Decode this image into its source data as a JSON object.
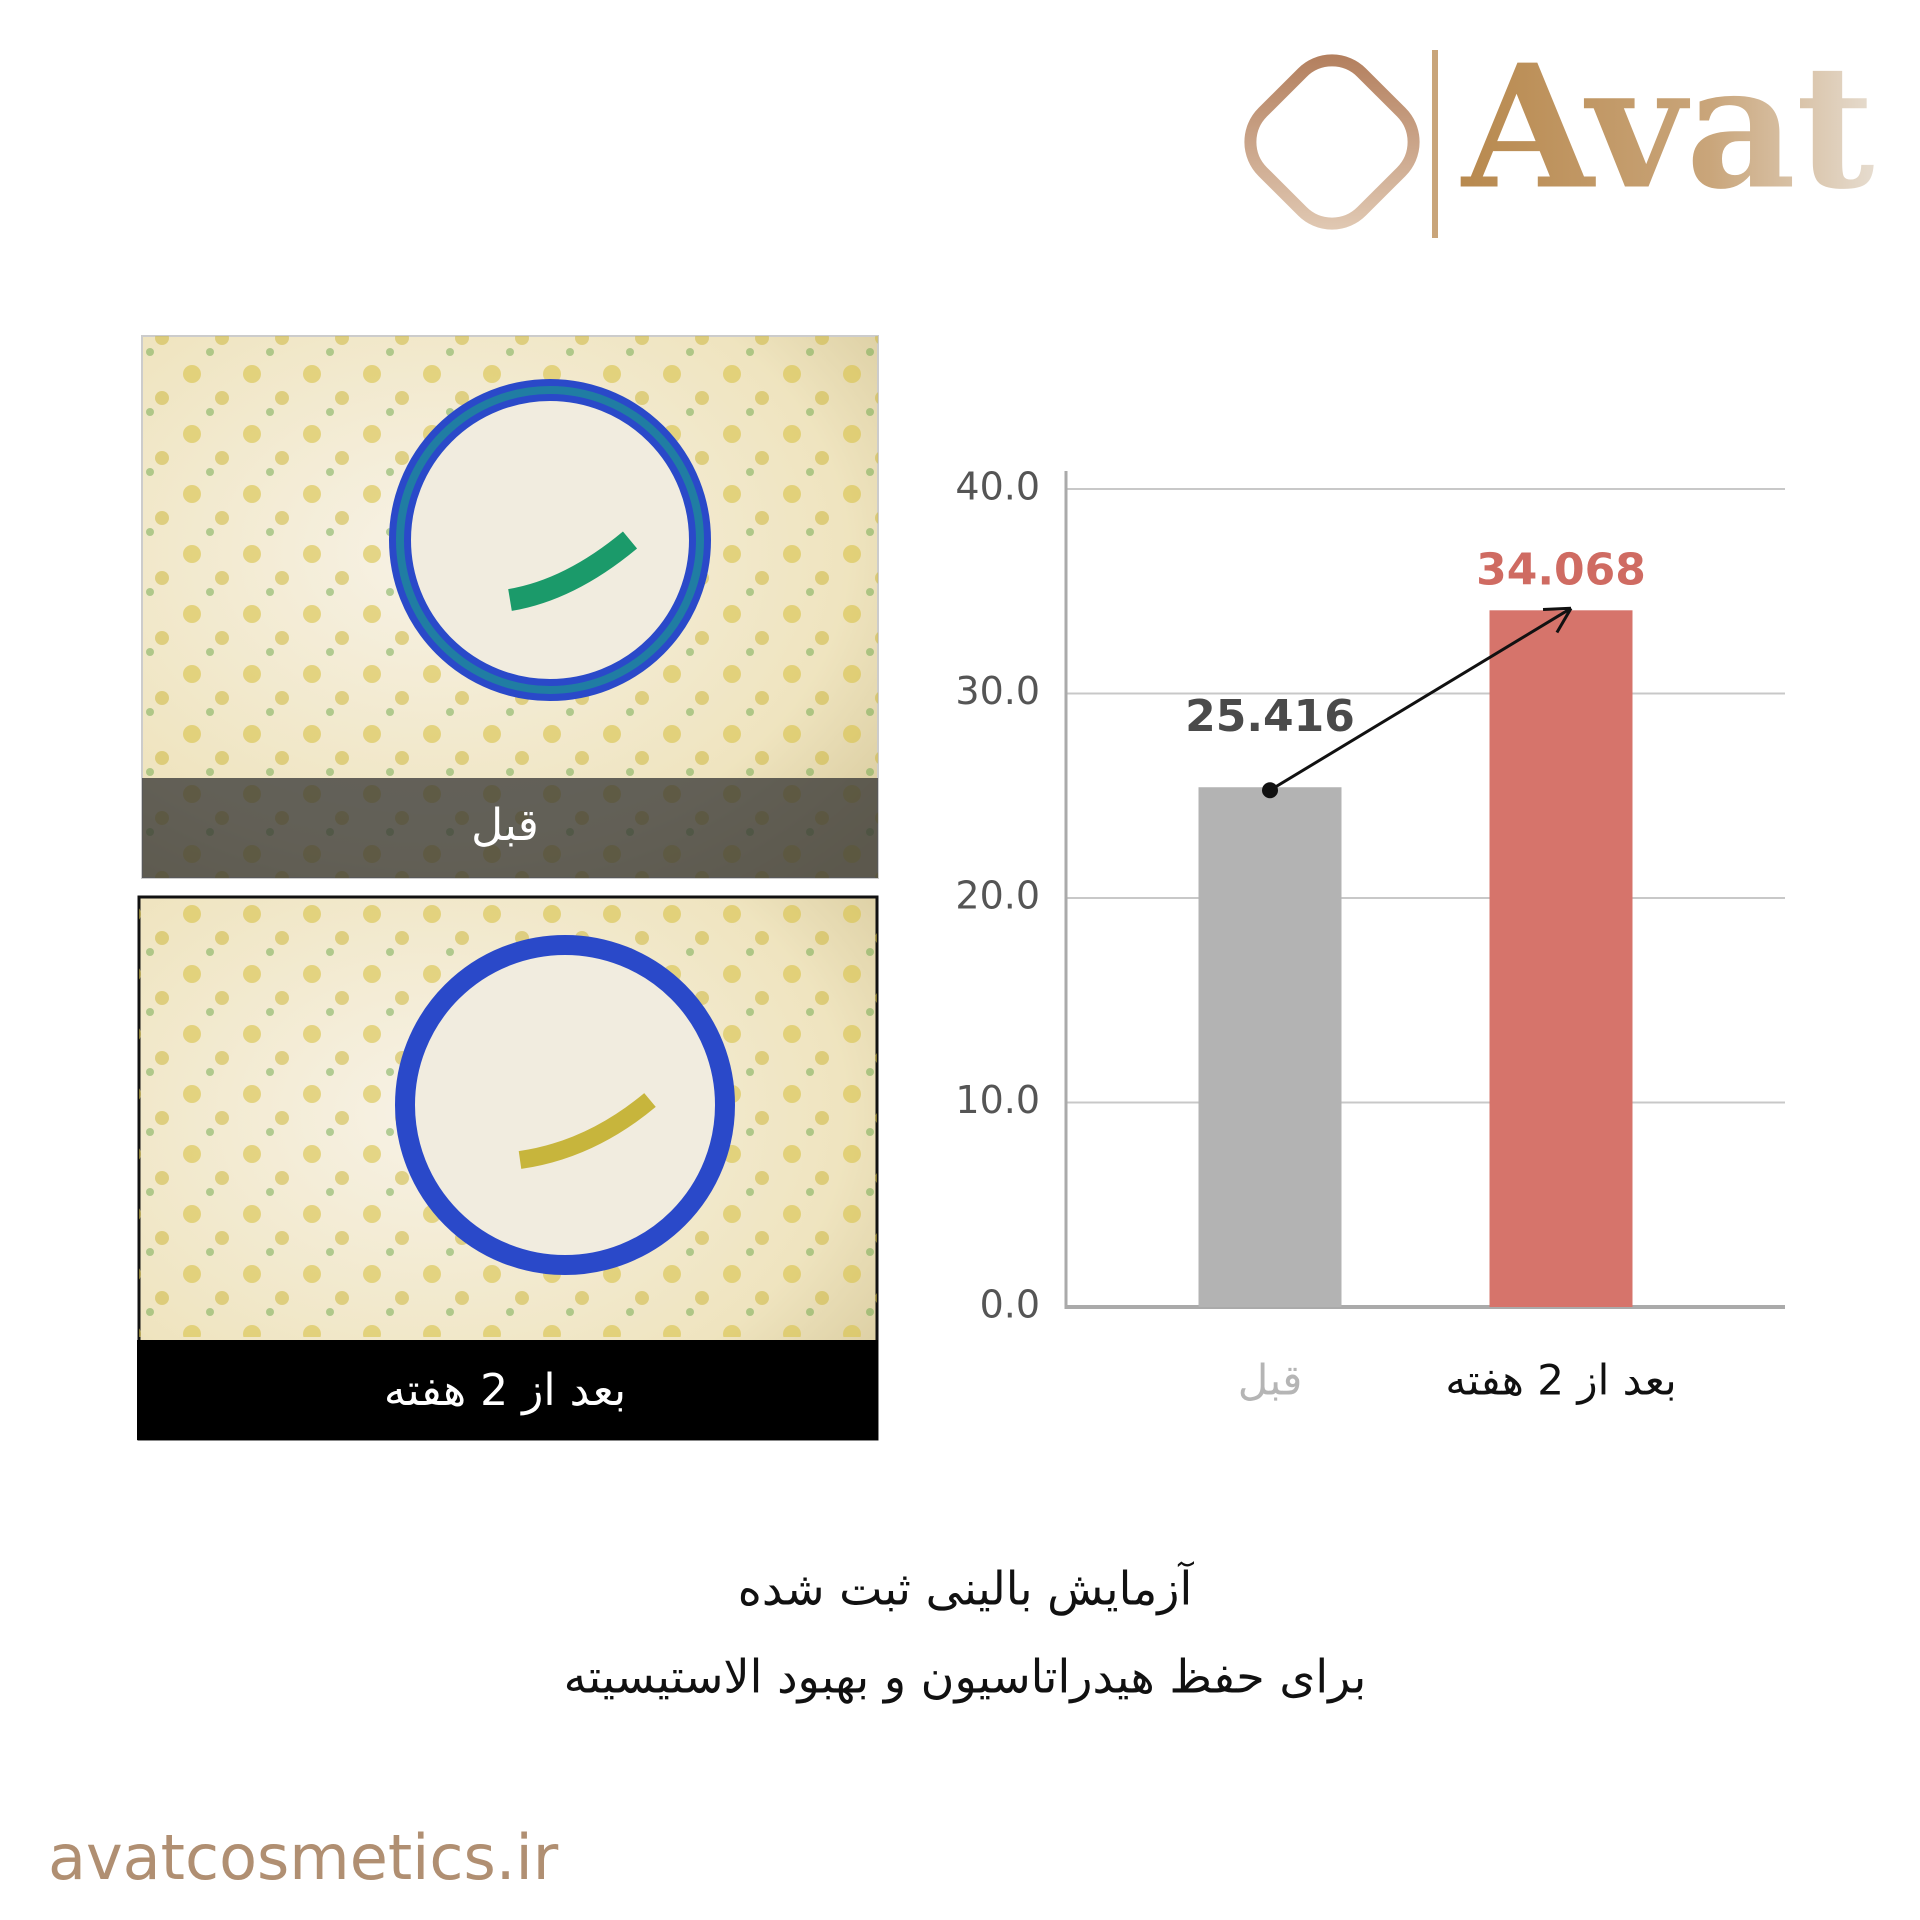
{
  "logo": {
    "text": "Avat"
  },
  "photos": [
    {
      "label": "قبل"
    },
    {
      "label": "بعد از 2 هفته"
    }
  ],
  "chart_data": {
    "type": "bar",
    "categories": [
      "قبل",
      "بعد از 2 هفته"
    ],
    "values": [
      25.416,
      34.068
    ],
    "colors": [
      "#b3b3b3",
      "#d6746b"
    ],
    "ylim": [
      0,
      40
    ],
    "yticks": [
      {
        "value": 0,
        "label": "0.0"
      },
      {
        "value": 10,
        "label": "10.0"
      },
      {
        "value": 20,
        "label": "20.0"
      },
      {
        "value": 30,
        "label": "30.0"
      },
      {
        "value": 40,
        "label": "40.0"
      }
    ],
    "grid": true
  },
  "caption": {
    "line1": "آزمایش بالینی ثبت شده",
    "line2": "برای حفظ هیدراتاسیون و بهبود الاستیسیته"
  },
  "website": "avatcosmetics.ir"
}
